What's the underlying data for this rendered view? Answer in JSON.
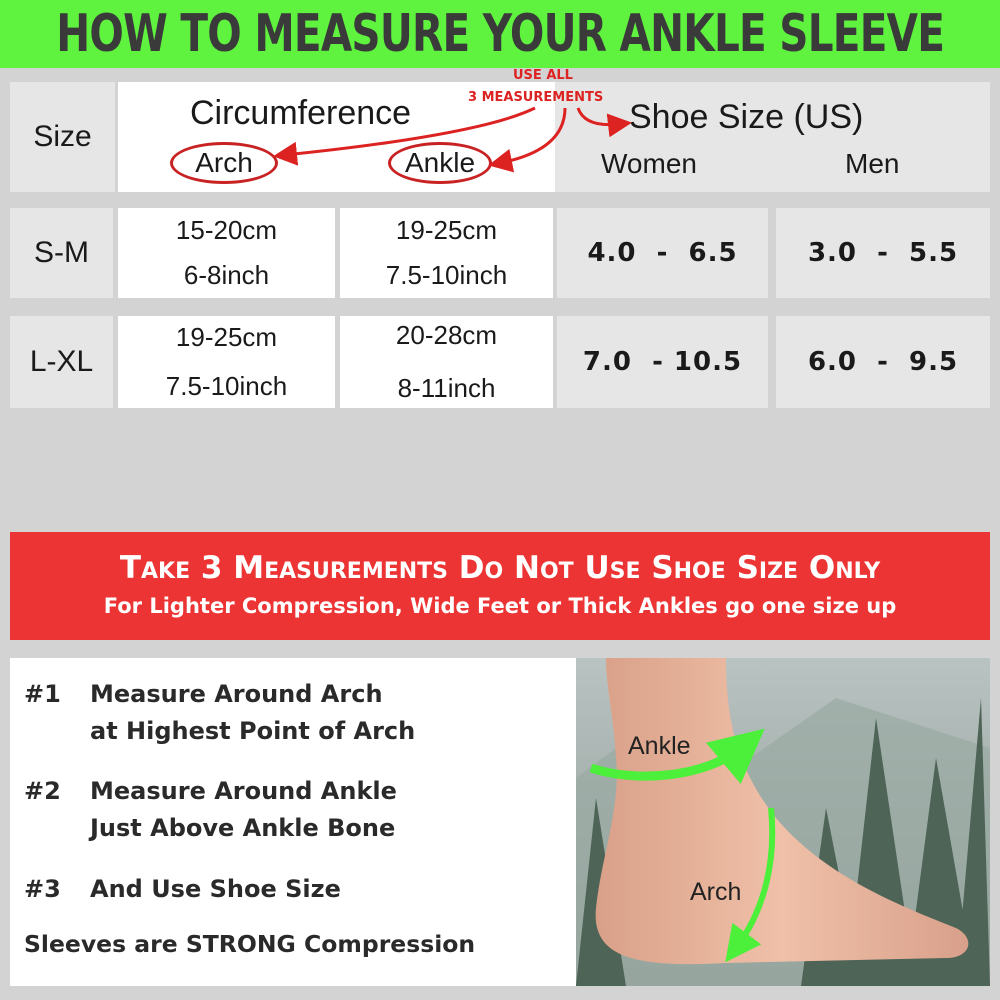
{
  "title": "HOW TO MEASURE YOUR ANKLE SLEEVE",
  "table": {
    "headers": {
      "size": "Size",
      "circumference": "Circumference",
      "arch": "Arch",
      "ankle": "Ankle",
      "shoe_size": "Shoe Size (US)",
      "women": "Women",
      "men": "Men"
    },
    "annotation": {
      "line1": "USE ALL",
      "line2": "3 MEASUREMENTS"
    },
    "rows": [
      {
        "size": "S-M",
        "arch_cm": "15-20cm",
        "arch_in": "6-8inch",
        "ankle_cm": "19-25cm",
        "ankle_in": "7.5-10inch",
        "women": "4.0  -  6.5",
        "men": "3.0  -  5.5"
      },
      {
        "size": "L-XL",
        "arch_cm": "19-25cm",
        "arch_in": "7.5-10inch",
        "ankle_cm": "20-28cm",
        "ankle_in": "8-11inch",
        "women": "7.0  - 10.5",
        "men": "6.0  -  9.5"
      }
    ]
  },
  "banner": {
    "headline": "Take 3 Measurements Do Not Use Shoe Size Only",
    "subline": "For Lighter Compression, Wide Feet or Thick Ankles go one size up"
  },
  "steps": [
    {
      "num": "#1",
      "line1": "Measure Around Arch",
      "line2": "at Highest Point of Arch"
    },
    {
      "num": "#2",
      "line1": "Measure Around Ankle",
      "line2": "Just Above Ankle Bone"
    },
    {
      "num": "#3",
      "line1": "And Use Shoe Size"
    }
  ],
  "note": "Sleeves are STRONG Compression",
  "photo": {
    "ankle_label": "Ankle",
    "arch_label": "Arch"
  },
  "colors": {
    "header_green": "#5ff23f",
    "banner_red": "#ed3434",
    "arrow_green": "#4cf03a",
    "annotation_red": "#dd2222"
  }
}
